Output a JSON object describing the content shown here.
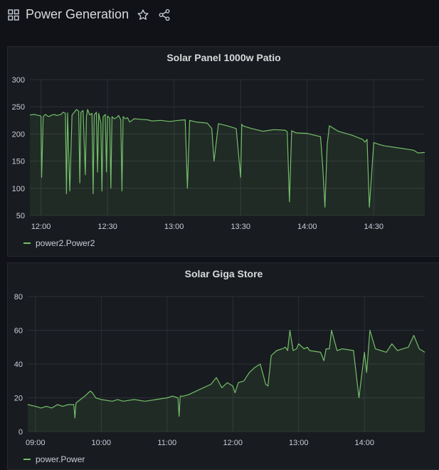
{
  "dashboard": {
    "title": "Power Generation",
    "icons": {
      "dashboard": "grid-icon",
      "favorite": "star-icon",
      "share": "share-icon"
    }
  },
  "colors": {
    "series": "#73bf69",
    "fill": "rgba(115,191,105,0.10)",
    "grid": "#2c3036",
    "text": "#ccccdc"
  },
  "panels": [
    {
      "title": "Solar Panel 1000w Patio",
      "legend": "power2.Power2",
      "chart_data": {
        "type": "line",
        "title": "Solar Panel 1000w Patio",
        "xlabel": "",
        "ylabel": "",
        "x_ticks": [
          "12:00",
          "12:30",
          "13:00",
          "13:30",
          "14:00",
          "14:30"
        ],
        "x_tick_values": [
          0,
          30,
          60,
          90,
          120,
          150
        ],
        "xlim": [
          -5,
          173
        ],
        "ylim": [
          50,
          300
        ],
        "y_ticks": [
          50,
          100,
          150,
          200,
          250,
          300
        ],
        "grid": true,
        "legend_position": "bottom-left",
        "series": [
          {
            "name": "power2.Power2",
            "x": [
              -5,
              -3,
              -1,
              0,
              0.3,
              1,
              2,
              3,
              3.5,
              4,
              5,
              6,
              7,
              8,
              9,
              10,
              11,
              11.5,
              12,
              13,
              14,
              15,
              16,
              17,
              17.5,
              18,
              19,
              20,
              20.5,
              21,
              22,
              23,
              23.5,
              24,
              25,
              25.5,
              26,
              27,
              27.5,
              28,
              29,
              29.5,
              30,
              31,
              31.5,
              32,
              33,
              34,
              35,
              36,
              36.5,
              37,
              38,
              39,
              40,
              41,
              42,
              45,
              48,
              50,
              54,
              58,
              62,
              65,
              66,
              67,
              70,
              75,
              77,
              78,
              80,
              84,
              88,
              90,
              90.5,
              91,
              95,
              100,
              105,
              110,
              111,
              112,
              113,
              115,
              120,
              123,
              126,
              127,
              128,
              129,
              130,
              134,
              140,
              145,
              146,
              147,
              148,
              150,
              153,
              155,
              160,
              165,
              168,
              170,
              173
            ],
            "y": [
              235,
              236,
              234,
              233,
              120,
              232,
              236,
              233,
              232,
              233,
              235,
              236,
              234,
              235,
              236,
              240,
              238,
              90,
              239,
              95,
              235,
              240,
              245,
              242,
              110,
              240,
              243,
              125,
              232,
              245,
              235,
              238,
              90,
              235,
              240,
              130,
              238,
              220,
              95,
              232,
              236,
              130,
              233,
              229,
              100,
              232,
              228,
              230,
              234,
              226,
              95,
              232,
              228,
              230,
              222,
              225,
              228,
              227,
              226,
              224,
              225,
              223,
              225,
              226,
              100,
              225,
              222,
              220,
              210,
              150,
              219,
              215,
              210,
              120,
              218,
              215,
              210,
              205,
              208,
              207,
              204,
              75,
              206,
              202,
              201,
              198,
              195,
              140,
              65,
              180,
              215,
              205,
              198,
              190,
              185,
              190,
              65,
              184,
              180,
              178,
              175,
              172,
              170,
              165,
              166
            ]
          }
        ]
      }
    },
    {
      "title": "Solar Giga Store",
      "legend": "power.Power",
      "chart_data": {
        "type": "line",
        "title": "Solar Giga Store",
        "xlabel": "",
        "ylabel": "",
        "x_ticks": [
          "09:00",
          "10:00",
          "11:00",
          "12:00",
          "13:00",
          "14:00"
        ],
        "x_tick_values": [
          0,
          60,
          120,
          180,
          240,
          300
        ],
        "xlim": [
          -7,
          355
        ],
        "ylim": [
          0,
          80
        ],
        "y_ticks": [
          0,
          20,
          40,
          60,
          80
        ],
        "grid": true,
        "legend_position": "bottom-left",
        "series": [
          {
            "name": "power.Power",
            "x": [
              -7,
              0,
              5,
              10,
              15,
              20,
              25,
              30,
              35,
              36,
              37,
              45,
              50,
              52,
              55,
              60,
              70,
              75,
              80,
              90,
              100,
              110,
              120,
              125,
              130,
              131,
              132,
              135,
              140,
              150,
              160,
              165,
              170,
              175,
              180,
              182,
              185,
              190,
              195,
              200,
              205,
              210,
              212,
              215,
              220,
              225,
              228,
              230,
              232,
              235,
              238,
              240,
              245,
              248,
              250,
              260,
              263,
              265,
              268,
              270,
              275,
              280,
              290,
              295,
              300,
              302,
              305,
              310,
              315,
              320,
              325,
              330,
              335,
              340,
              345,
              350,
              355
            ],
            "y": [
              16,
              15,
              14,
              15,
              14,
              16,
              15,
              16,
              16,
              8,
              17,
              21,
              24,
              23,
              20,
              19,
              18,
              19,
              18,
              19,
              18,
              19,
              20,
              21,
              20,
              9,
              21,
              21,
              22,
              25,
              28,
              32,
              26,
              29,
              27,
              23,
              29,
              30,
              35,
              38,
              40,
              28,
              27,
              45,
              48,
              49,
              50,
              48,
              60,
              48,
              49,
              52,
              49,
              50,
              48,
              47,
              42,
              49,
              49,
              60,
              48,
              49,
              48,
              20,
              47,
              35,
              60,
              49,
              48,
              47,
              52,
              48,
              49,
              50,
              57,
              49,
              47
            ]
          }
        ]
      }
    }
  ]
}
